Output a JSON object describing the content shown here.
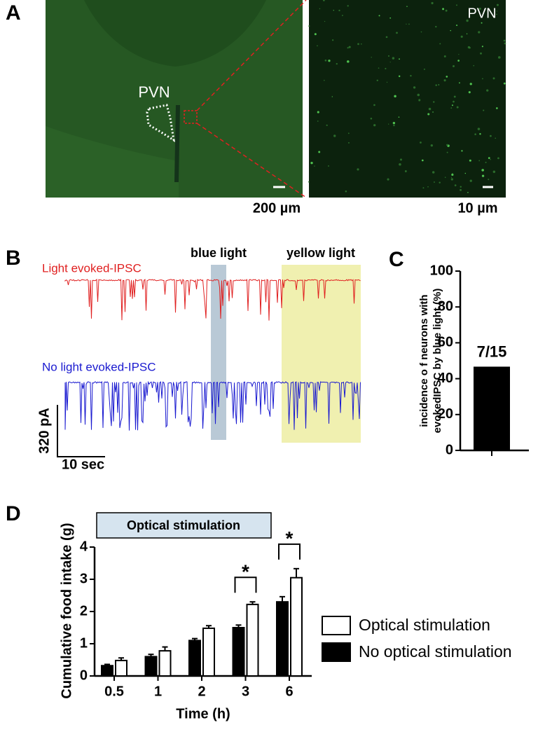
{
  "panel_a": {
    "label": "A",
    "left_label": "PVN",
    "left_scale": "200 µm",
    "right_label": "PVN",
    "right_scale": "10 µm"
  },
  "panel_b": {
    "label": "B",
    "blue_label": "blue light",
    "yellow_label": "yellow light",
    "trace_1": "Light evoked-IPSC",
    "trace_2": "No light evoked-IPSC",
    "scale_y": "320 pA",
    "scale_x": "10 sec"
  },
  "chart_data": [
    {
      "type": "bar",
      "panel_label": "C",
      "y_label": [
        "incidence o f neurons with",
        "evokedIPSC by blue light (%)"
      ],
      "categories": [
        null
      ],
      "values": [
        46.7
      ],
      "value_labels": [
        "7/15"
      ],
      "color": "#000000",
      "ylim": [
        0,
        100
      ],
      "yticks": [
        0,
        20,
        40,
        60,
        80,
        100
      ]
    },
    {
      "type": "grouped_bar",
      "panel_label": "D",
      "banner": "Optical stimulation",
      "x_label": "Time (h)",
      "y_label": "Cumulative food intake (g)",
      "categories": [
        "0.5",
        "1",
        "2",
        "3",
        "6"
      ],
      "series": [
        {
          "name": "Optical stimulation",
          "color": "#ffffff",
          "values": [
            0.48,
            0.78,
            1.48,
            2.22,
            3.05
          ],
          "errors": [
            0.08,
            0.12,
            0.08,
            0.08,
            0.28
          ]
        },
        {
          "name": "No optical stimulation",
          "color": "#000000",
          "values": [
            0.32,
            0.6,
            1.1,
            1.5,
            2.3
          ],
          "errors": [
            0.04,
            0.07,
            0.06,
            0.08,
            0.16
          ]
        }
      ],
      "annotations": [
        {
          "x": "3",
          "text": "*"
        },
        {
          "x": "6",
          "text": "*"
        }
      ],
      "ylim": [
        0,
        4
      ],
      "yticks": [
        0,
        1,
        2,
        3,
        4
      ]
    }
  ]
}
